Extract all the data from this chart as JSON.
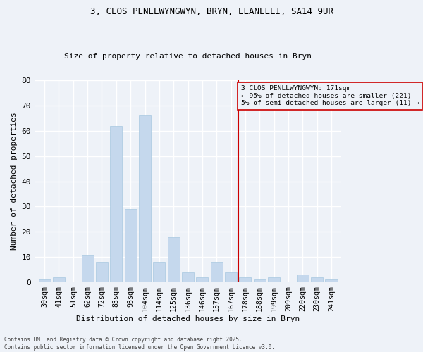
{
  "title1": "3, CLOS PENLLWYNGWYN, BRYN, LLANELLI, SA14 9UR",
  "title2": "Size of property relative to detached houses in Bryn",
  "xlabel": "Distribution of detached houses by size in Bryn",
  "ylabel": "Number of detached properties",
  "bar_labels": [
    "30sqm",
    "41sqm",
    "51sqm",
    "62sqm",
    "72sqm",
    "83sqm",
    "93sqm",
    "104sqm",
    "114sqm",
    "125sqm",
    "136sqm",
    "146sqm",
    "157sqm",
    "167sqm",
    "178sqm",
    "188sqm",
    "199sqm",
    "209sqm",
    "220sqm",
    "230sqm",
    "241sqm"
  ],
  "bar_values": [
    1,
    2,
    0,
    11,
    8,
    62,
    29,
    66,
    8,
    18,
    4,
    2,
    8,
    4,
    2,
    1,
    2,
    0,
    3,
    2,
    1
  ],
  "bar_color": "#c5d8ed",
  "bar_edge_color": "#a8c8e0",
  "vline_x": 13.5,
  "vline_color": "#cc0000",
  "annotation_text": "3 CLOS PENLLWYNGWYN: 171sqm\n← 95% of detached houses are smaller (221)\n5% of semi-detached houses are larger (11) →",
  "ylim": [
    0,
    80
  ],
  "yticks": [
    0,
    10,
    20,
    30,
    40,
    50,
    60,
    70,
    80
  ],
  "footer_text": "Contains HM Land Registry data © Crown copyright and database right 2025.\nContains public sector information licensed under the Open Government Licence v3.0.",
  "bg_color": "#eef2f8",
  "grid_color": "#ffffff"
}
